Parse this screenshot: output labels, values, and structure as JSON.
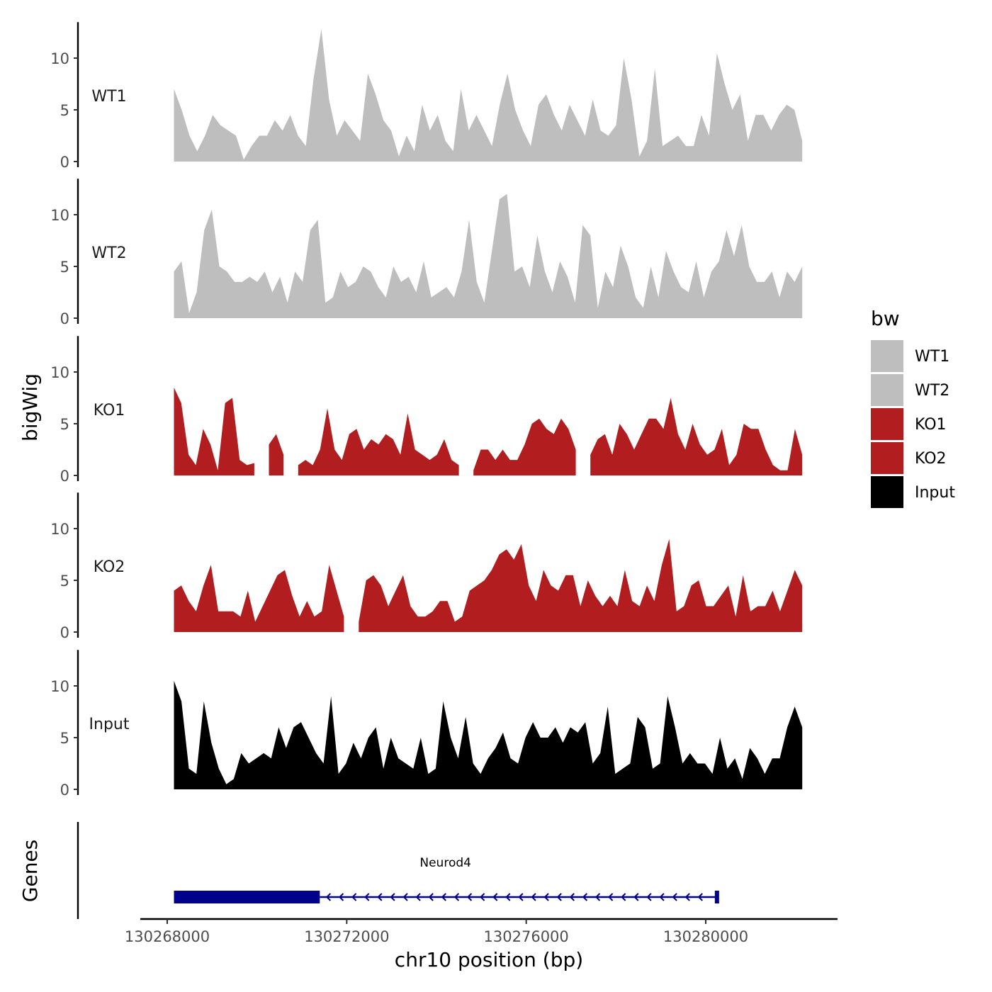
{
  "chart_data": {
    "type": "area",
    "chromosome": "chr10",
    "xlabel": "chr10 position (bp)",
    "ylabel": "bigWig",
    "genes_label": "Genes",
    "xlim": [
      130267950,
      130283000
    ],
    "x_ticks": [
      130268000,
      130272000,
      130276000,
      130280000
    ],
    "x_tick_labels": [
      "130268000",
      "130272000",
      "130276000",
      "130280000"
    ],
    "ylim": [
      0,
      13
    ],
    "y_ticks": [
      0,
      5,
      10
    ],
    "y_tick_labels": [
      "0",
      "5",
      "10"
    ],
    "legend": {
      "title": "bw",
      "position": "right",
      "entries": [
        {
          "label": "WT1",
          "color": "#bebebe"
        },
        {
          "label": "WT2",
          "color": "#bebebe"
        },
        {
          "label": "KO1",
          "color": "#b21e1f"
        },
        {
          "label": "KO2",
          "color": "#b21e1f"
        },
        {
          "label": "Input",
          "color": "#000000"
        }
      ]
    },
    "bin_size_bp": 200,
    "series": [
      {
        "name": "WT1",
        "color": "#bebebe",
        "start": 130268150,
        "values": [
          7,
          5,
          2.5,
          1,
          2.5,
          4.5,
          3.5,
          3,
          2.5,
          0.2,
          1.5,
          2.5,
          2.5,
          4,
          3,
          4.5,
          2.5,
          1.5,
          8,
          12.8,
          6,
          2.5,
          4,
          3,
          2,
          8.5,
          6.5,
          4,
          3,
          0.5,
          2.5,
          1,
          5.5,
          3,
          4.5,
          2,
          1,
          7,
          3,
          4.5,
          3,
          1.5,
          5.5,
          8.5,
          5,
          3,
          1.5,
          5.5,
          6.5,
          4.5,
          3,
          5.5,
          4,
          2.5,
          6,
          3,
          2.5,
          3.5,
          10,
          6,
          0.5,
          2,
          9,
          1.5,
          2,
          2.5,
          1.5,
          1.5,
          4.5,
          2.5,
          10.5,
          7.5,
          5,
          6.5,
          2,
          4.5,
          4.5,
          3,
          4.5,
          5.5,
          5,
          2
        ],
        "end": 130282150
      },
      {
        "name": "WT2",
        "color": "#bebebe",
        "start": 130268150,
        "values": [
          4.5,
          5.5,
          0.5,
          2.5,
          8.5,
          10.5,
          5,
          4.5,
          3.5,
          3.5,
          4,
          3.5,
          4.5,
          2.5,
          4,
          1.5,
          4.5,
          3.5,
          8.5,
          9.5,
          1.5,
          2,
          4.5,
          3,
          3.5,
          5,
          4.5,
          3,
          2,
          5,
          3.5,
          4,
          2.5,
          5.5,
          2,
          2.5,
          3,
          2,
          4.5,
          9.5,
          3.5,
          1.5,
          6.5,
          11.5,
          12,
          4.5,
          5,
          3,
          8,
          4.5,
          2.5,
          5.5,
          4,
          1.5,
          9,
          8,
          1,
          4.5,
          3,
          7,
          5,
          2,
          1,
          5,
          2,
          6.5,
          4.5,
          3,
          2.5,
          5.5,
          2,
          4.5,
          5.5,
          8.5,
          6,
          9,
          5,
          3.5,
          3.5,
          4.5,
          2,
          4.5,
          3.5,
          5
        ],
        "end": 130282150
      },
      {
        "name": "KO1",
        "color": "#b21e1f",
        "start": 130268150,
        "values": [
          8.5,
          7,
          2,
          1,
          4.5,
          3,
          0.5,
          7,
          7.5,
          1.5,
          1,
          1.2,
          null,
          3,
          4,
          2,
          null,
          1,
          1.5,
          1,
          2.5,
          6.5,
          2.5,
          1.5,
          4,
          4.5,
          2.5,
          3.5,
          3,
          4,
          3.5,
          2,
          6,
          2.5,
          2,
          1.5,
          2,
          3.5,
          1.5,
          1,
          null,
          0.5,
          2.5,
          2.5,
          1.5,
          2.5,
          1.5,
          1.5,
          3,
          5,
          5.5,
          4.5,
          4,
          5.5,
          4.5,
          2.5,
          null,
          2,
          3.5,
          4,
          2,
          5,
          4,
          2.5,
          4,
          5.5,
          5.5,
          4.5,
          7.5,
          4,
          2.5,
          5,
          3,
          2,
          2.5,
          4.5,
          1,
          2,
          5,
          4.5,
          4.5,
          2.5,
          1,
          0.5,
          0.5,
          4.5,
          2
        ],
        "end": 130282150
      },
      {
        "name": "KO2",
        "color": "#b21e1f",
        "start": 130268150,
        "values": [
          4,
          4.5,
          3,
          2,
          4.5,
          6.5,
          2,
          2,
          2,
          1.5,
          4,
          1,
          2.5,
          4,
          5.5,
          6,
          3.5,
          1.5,
          3,
          1.5,
          2,
          6.5,
          4,
          1.5,
          null,
          1,
          5,
          5.5,
          4.5,
          2.5,
          4,
          5.5,
          2.5,
          1.5,
          1.5,
          2,
          3,
          3,
          1,
          1.5,
          4,
          4.5,
          5,
          6,
          7.5,
          8,
          7,
          8.5,
          4.5,
          3,
          6,
          4.5,
          4,
          5.5,
          5.5,
          2.5,
          5,
          3.5,
          2.5,
          3.5,
          2.5,
          6,
          3,
          2.5,
          4.5,
          3,
          6.5,
          9,
          2,
          2.5,
          4.5,
          5,
          2.5,
          2.5,
          3.5,
          4.5,
          1.5,
          5.5,
          2,
          2.5,
          2.5,
          4,
          2,
          4,
          6,
          4.5
        ],
        "end": 130282150
      },
      {
        "name": "Input",
        "color": "#000000",
        "start": 130268150,
        "values": [
          10.5,
          8.5,
          2,
          1.5,
          8.5,
          4.5,
          2,
          0.5,
          1,
          3.5,
          2.5,
          3,
          3.5,
          3,
          6,
          4,
          6,
          6.5,
          5,
          3.5,
          2.5,
          9,
          1.5,
          2.5,
          4.5,
          3,
          5,
          6,
          2,
          5,
          3,
          2.5,
          2,
          5,
          1.5,
          2,
          8.5,
          5,
          3,
          7,
          2.5,
          1.5,
          3,
          4,
          5.5,
          3,
          2.5,
          5,
          6.5,
          5,
          5,
          6,
          4.5,
          6,
          5.5,
          6.5,
          2.5,
          3.5,
          8,
          1.5,
          2,
          2.5,
          7,
          6,
          2,
          2.5,
          9,
          6,
          2.5,
          3.5,
          2.5,
          2.5,
          1.5,
          5,
          2,
          3,
          1,
          4,
          3,
          1.5,
          3,
          3,
          6,
          8,
          6
        ],
        "end": 130282150
      }
    ],
    "gene": {
      "name": "Neurod4",
      "color": "#00008b",
      "strand": "-",
      "start": 130268150,
      "end": 130280250,
      "thick_start": 130268150,
      "thick_end": 130271400
    }
  }
}
